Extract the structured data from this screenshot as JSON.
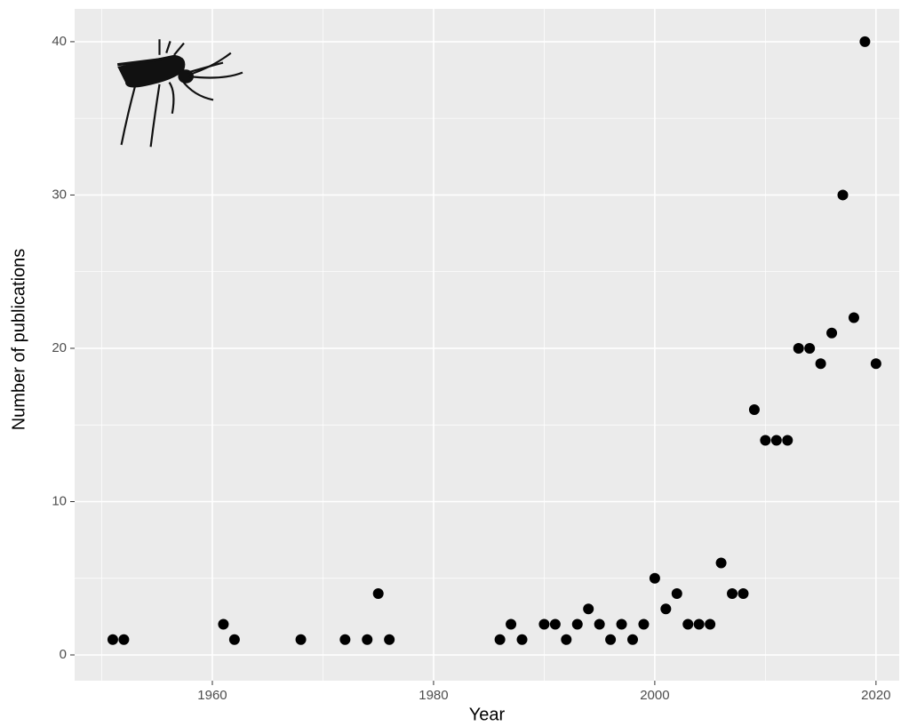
{
  "chart_data": {
    "type": "scatter",
    "x_label": "Year",
    "y_label": "Number of publications",
    "series": [
      {
        "color": "#000000",
        "x": [
          1951,
          1952,
          1961,
          1962,
          1968,
          1972,
          1974,
          1975,
          1976,
          1986,
          1987,
          1988,
          1990,
          1991,
          1992,
          1993,
          1994,
          1995,
          1996,
          1997,
          1998,
          1999,
          2000,
          2001,
          2002,
          2003,
          2004,
          2005,
          2006,
          2007,
          2008,
          2009,
          2010,
          2011,
          2012,
          2013,
          2014,
          2015,
          2016,
          2017,
          2018,
          2019,
          2020
        ],
        "values": [
          1,
          1,
          2,
          1,
          1,
          1,
          1,
          4,
          1,
          1,
          2,
          1,
          2,
          2,
          1,
          2,
          3,
          2,
          1,
          2,
          1,
          2,
          5,
          3,
          4,
          2,
          2,
          2,
          6,
          4,
          4,
          16,
          14,
          14,
          14,
          20,
          20,
          19,
          21,
          30,
          22,
          40,
          19
        ]
      }
    ],
    "xlim": [
      1947.55,
      2022.1
    ],
    "xticks": [
      1960,
      1980,
      2000,
      2020
    ],
    "ylim": [
      -1.68,
      42.14
    ],
    "yticks": [
      0,
      10,
      20,
      30,
      40
    ],
    "grid": true
  }
}
